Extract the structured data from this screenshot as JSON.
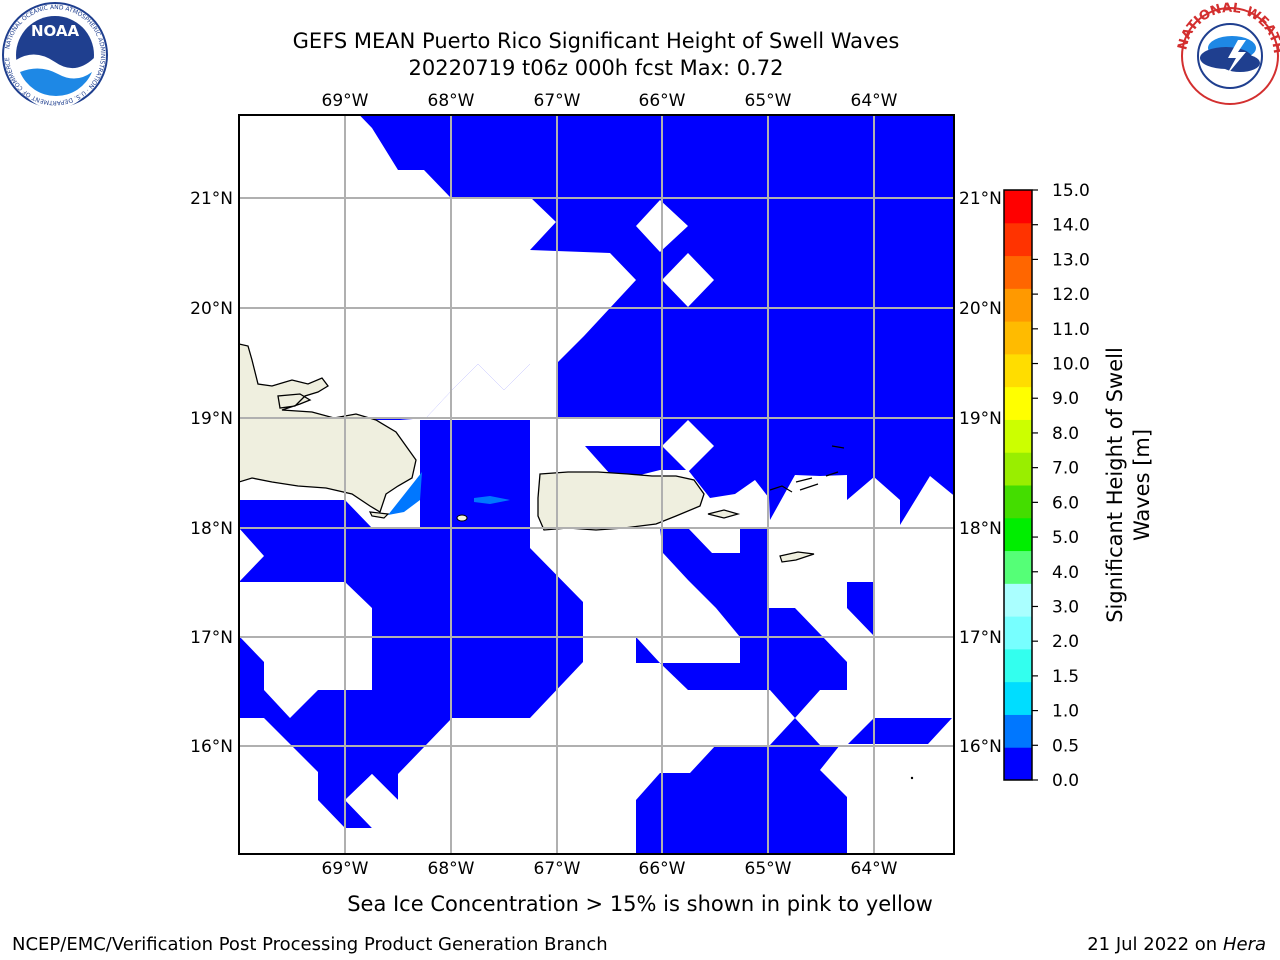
{
  "title": {
    "line1": "GEFS MEAN Puerto Rico Significant Height of Swell Waves",
    "line2": "20220719 t06z 000h fcst   Max: 0.72"
  },
  "map": {
    "top_lon_ticks": [
      "69°W",
      "68°W",
      "67°W",
      "66°W",
      "65°W",
      "64°W"
    ],
    "bottom_lon_ticks": [
      "69°W",
      "68°W",
      "67°W",
      "66°W",
      "65°W",
      "64°W"
    ],
    "left_lat_ticks": [
      "21°N",
      "20°N",
      "19°N",
      "18°N",
      "17°N",
      "16°N"
    ],
    "right_lat_ticks": [
      "21°N",
      "20°N",
      "19°N",
      "18°N",
      "17°N",
      "16°N"
    ],
    "field_colors": {
      "band_0_0p5": "#0000ff",
      "band_0p5_1p0": "#0077ff",
      "land": "#efefdf",
      "grid": "#b0b0b0"
    }
  },
  "colorbar": {
    "label": "Significant Height of Swell Waves [m]",
    "label_line1": "Significant Height of Swell",
    "label_line2": "Waves [m]",
    "ticks": [
      "0.0",
      "0.5",
      "1.0",
      "1.5",
      "2.0",
      "3.0",
      "4.0",
      "5.0",
      "6.0",
      "7.0",
      "8.0",
      "9.0",
      "10.0",
      "11.0",
      "12.0",
      "13.0",
      "14.0",
      "15.0"
    ],
    "colors": [
      "#0000ff",
      "#0077ff",
      "#00ddff",
      "#33ffee",
      "#77ffff",
      "#aaffff",
      "#55ff77",
      "#00ee00",
      "#44dd00",
      "#99ee00",
      "#ccff00",
      "#ffff00",
      "#ffdd00",
      "#ffbb00",
      "#ff9900",
      "#ff6600",
      "#ff3300",
      "#ff0000"
    ]
  },
  "note": "Sea Ice Concentration > 15% is shown in pink to yellow",
  "footer": {
    "left": "NCEP/EMC/Verification Post Processing Product Generation Branch",
    "right_date": "21 Jul 2022 on ",
    "right_machine": "Hera"
  },
  "logos": {
    "noaa_text": "NOAA",
    "noaa_ring": "NATIONAL OCEANIC AND ATMOSPHERIC ADMINISTRATION · U.S. DEPARTMENT OF COMMERCE",
    "nws_ring": "NATIONAL WEATHER SERVICE"
  }
}
